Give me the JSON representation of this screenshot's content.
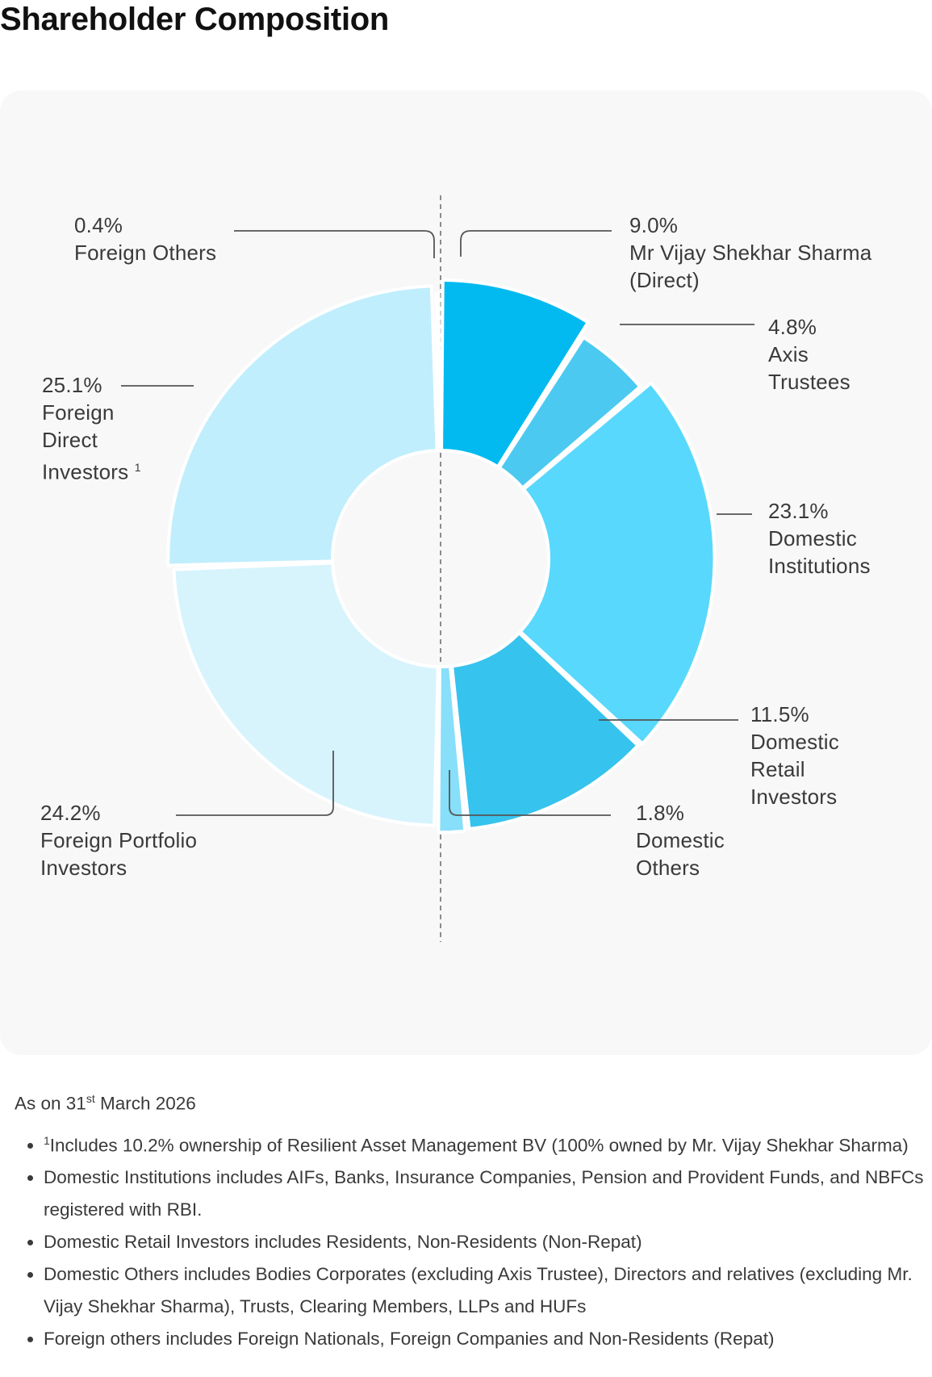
{
  "page": {
    "title": "Shareholder Composition"
  },
  "chart_data": {
    "type": "pie",
    "title": "Shareholder Composition",
    "unit": "%",
    "slices": [
      {
        "pct": "9.0%",
        "value": 9.0,
        "lines": [
          "Mr Vijay Shekhar Sharma",
          "(Direct)"
        ],
        "color": "#02BAF0"
      },
      {
        "pct": "4.8%",
        "value": 4.8,
        "lines": [
          "Axis",
          "Trustees"
        ],
        "color": "#4CC9F0"
      },
      {
        "pct": "23.1%",
        "value": 23.1,
        "lines": [
          "Domestic",
          "Institutions"
        ],
        "color": "#58D8FC"
      },
      {
        "pct": "11.5%",
        "value": 11.5,
        "lines": [
          "Domestic",
          "Retail",
          "Investors"
        ],
        "color": "#36C3ED"
      },
      {
        "pct": "1.8%",
        "value": 1.8,
        "lines": [
          "Domestic",
          "Others"
        ],
        "color": "#87DFF9"
      },
      {
        "pct": "24.2%",
        "value": 24.2,
        "lines": [
          "Foreign Portfolio",
          "Investors"
        ],
        "color": "#D7F4FD"
      },
      {
        "pct": "25.1%",
        "value": 25.1,
        "lines": [
          "Foreign",
          "Direct",
          "Investors"
        ],
        "sup": "1",
        "color": "#C0EEFC"
      },
      {
        "pct": "0.4%",
        "value": 0.4,
        "lines": [
          "Foreign Others"
        ],
        "color": "#9CE2F8"
      }
    ]
  },
  "notes": {
    "as_on_prefix": "As on 31",
    "as_on_sup": "st",
    "as_on_suffix": " March 2026",
    "footnote_marker": "1",
    "items": [
      "Includes 10.2% ownership of Resilient Asset Management BV (100% owned by Mr. Vijay Shekhar Sharma)",
      "Domestic Institutions includes AIFs, Banks, Insurance Companies, Pension and Provident Funds, and NBFCs registered with RBI.",
      "Domestic Retail Investors includes Residents, Non-Residents (Non-Repat)",
      "Domestic Others includes Bodies Corporates (excluding Axis Trustee), Directors and relatives (excluding Mr. Vijay Shekhar Sharma), Trusts, Clearing Members, LLPs and HUFs",
      "Foreign others includes Foreign Nationals, Foreign Companies and Non-Residents (Repat)"
    ]
  }
}
